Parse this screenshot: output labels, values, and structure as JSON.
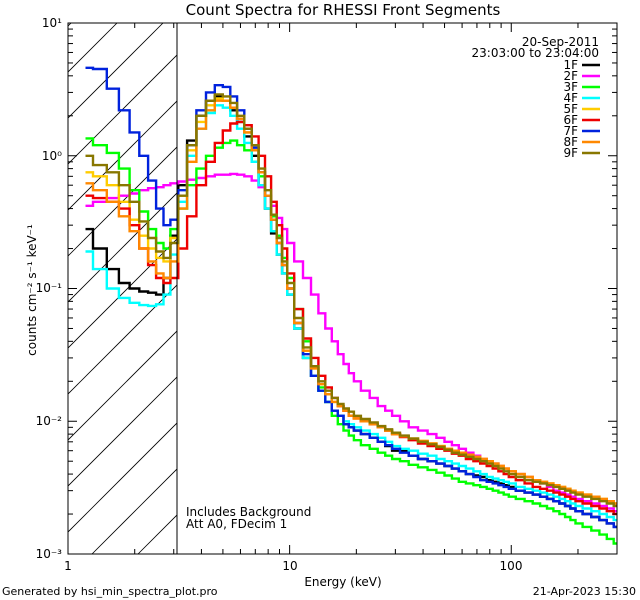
{
  "chart_data": {
    "type": "line",
    "title": "Count Spectra for RHESSI Front Segments",
    "xlabel": "Energy (keV)",
    "ylabel": "counts cm⁻² s⁻¹ keV⁻¹",
    "xscale": "log",
    "yscale": "log",
    "xlim": [
      1,
      300
    ],
    "ylim": [
      0.001,
      10
    ],
    "x_tick_labels": [
      "1",
      "10",
      "100"
    ],
    "y_tick_labels": [
      "10⁻³",
      "10⁻²",
      "10⁻¹",
      "10⁰",
      "10¹"
    ],
    "legend_location": "top-right",
    "header_lines": [
      "20-Sep-2011",
      "23:03:00 to 23:04:00"
    ],
    "annotations": [
      "Includes Background",
      "Att A0, FDecim 1"
    ],
    "footer_left": "Generated by hsi_min_spectra_plot.pro",
    "footer_right": "21-Apr-2023 15:30",
    "shaded_region_keV": [
      1,
      3
    ],
    "energy_keV": [
      1.2,
      1.4,
      1.6,
      1.8,
      2.0,
      2.2,
      2.4,
      2.6,
      2.8,
      3.0,
      3.3,
      3.6,
      4.0,
      4.4,
      4.8,
      5.2,
      5.6,
      6.0,
      6.5,
      7.0,
      7.5,
      8.0,
      8.5,
      9.0,
      9.5,
      10,
      11,
      12,
      13,
      14,
      15,
      16,
      17,
      18,
      19,
      20,
      22,
      24,
      26,
      28,
      30,
      33,
      36,
      40,
      44,
      48,
      52,
      56,
      60,
      65,
      70,
      75,
      80,
      85,
      90,
      95,
      100,
      110,
      120,
      130,
      140,
      150,
      160,
      170,
      180,
      190,
      200,
      220,
      240,
      260,
      280,
      300
    ],
    "series": [
      {
        "name": "1F",
        "color": "#000000",
        "values": [
          0.28,
          0.2,
          0.14,
          0.11,
          0.1,
          0.095,
          0.093,
          0.09,
          0.12,
          0.25,
          0.6,
          1.3,
          2.0,
          2.6,
          2.8,
          2.6,
          2.2,
          1.8,
          1.4,
          1.0,
          0.6,
          0.4,
          0.26,
          0.18,
          0.13,
          0.09,
          0.05,
          0.03,
          0.022,
          0.017,
          0.014,
          0.012,
          0.011,
          0.0095,
          0.009,
          0.0085,
          0.008,
          0.0075,
          0.007,
          0.0065,
          0.006,
          0.006,
          0.0055,
          0.0052,
          0.005,
          0.0048,
          0.0046,
          0.0044,
          0.0042,
          0.004,
          0.0039,
          0.0038,
          0.0036,
          0.0035,
          0.0034,
          0.0033,
          0.0032,
          0.003,
          0.0029,
          0.0028,
          0.0027,
          0.0026,
          0.0025,
          0.0024,
          0.0023,
          0.0022,
          0.0021,
          0.002,
          0.0019,
          0.0018,
          0.0017,
          0.0016
        ]
      },
      {
        "name": "2F",
        "color": "#ff00ff",
        "values": [
          0.42,
          0.45,
          0.48,
          0.5,
          0.52,
          0.55,
          0.57,
          0.58,
          0.6,
          0.62,
          0.64,
          0.66,
          0.68,
          0.7,
          0.72,
          0.72,
          0.73,
          0.72,
          0.7,
          0.65,
          0.58,
          0.5,
          0.42,
          0.34,
          0.28,
          0.22,
          0.16,
          0.12,
          0.09,
          0.065,
          0.05,
          0.04,
          0.032,
          0.027,
          0.023,
          0.02,
          0.017,
          0.015,
          0.013,
          0.012,
          0.011,
          0.01,
          0.009,
          0.0085,
          0.008,
          0.0075,
          0.007,
          0.0066,
          0.0062,
          0.0058,
          0.0055,
          0.0052,
          0.005,
          0.0048,
          0.0046,
          0.0044,
          0.0042,
          0.004,
          0.0038,
          0.0036,
          0.0034,
          0.0032,
          0.003,
          0.0029,
          0.0028,
          0.0027,
          0.0026,
          0.0025,
          0.0024,
          0.0023,
          0.0022,
          0.0021
        ]
      },
      {
        "name": "3F",
        "color": "#00ff00",
        "values": [
          1.35,
          1.2,
          1.05,
          0.8,
          0.55,
          0.38,
          0.28,
          0.22,
          0.2,
          0.28,
          0.4,
          0.6,
          0.8,
          1.0,
          1.15,
          1.25,
          1.3,
          1.2,
          1.1,
          0.9,
          0.7,
          0.5,
          0.35,
          0.25,
          0.17,
          0.12,
          0.07,
          0.04,
          0.026,
          0.018,
          0.014,
          0.011,
          0.0095,
          0.0085,
          0.0078,
          0.0072,
          0.0066,
          0.0062,
          0.0058,
          0.0055,
          0.0052,
          0.005,
          0.0047,
          0.0045,
          0.0043,
          0.0041,
          0.0039,
          0.0037,
          0.0035,
          0.0034,
          0.0033,
          0.0032,
          0.0031,
          0.003,
          0.0029,
          0.0028,
          0.0027,
          0.0026,
          0.0025,
          0.0024,
          0.0023,
          0.0022,
          0.0021,
          0.002,
          0.0019,
          0.0018,
          0.0017,
          0.0016,
          0.0015,
          0.0014,
          0.0013,
          0.0012
        ]
      },
      {
        "name": "4F",
        "color": "#00ffff",
        "values": [
          0.19,
          0.14,
          0.1,
          0.085,
          0.078,
          0.075,
          0.074,
          0.076,
          0.09,
          0.18,
          0.45,
          1.0,
          1.6,
          2.1,
          2.4,
          2.3,
          2.0,
          1.6,
          1.25,
          0.9,
          0.6,
          0.4,
          0.27,
          0.18,
          0.13,
          0.09,
          0.05,
          0.03,
          0.022,
          0.017,
          0.014,
          0.012,
          0.011,
          0.01,
          0.0095,
          0.009,
          0.0085,
          0.008,
          0.0075,
          0.007,
          0.0065,
          0.0062,
          0.006,
          0.0057,
          0.0055,
          0.0052,
          0.005,
          0.0048,
          0.0046,
          0.0044,
          0.0042,
          0.004,
          0.0038,
          0.0037,
          0.0036,
          0.0035,
          0.0034,
          0.0032,
          0.0031,
          0.003,
          0.0029,
          0.0028,
          0.0027,
          0.0026,
          0.0025,
          0.0024,
          0.0023,
          0.0022,
          0.0021,
          0.002,
          0.0019,
          0.0018
        ]
      },
      {
        "name": "5F",
        "color": "#ffcc00",
        "values": [
          0.75,
          0.7,
          0.6,
          0.45,
          0.33,
          0.25,
          0.2,
          0.17,
          0.16,
          0.24,
          0.5,
          1.1,
          1.8,
          2.4,
          2.7,
          2.6,
          2.3,
          1.9,
          1.5,
          1.1,
          0.75,
          0.5,
          0.33,
          0.22,
          0.15,
          0.1,
          0.055,
          0.034,
          0.025,
          0.019,
          0.016,
          0.014,
          0.013,
          0.012,
          0.011,
          0.0105,
          0.01,
          0.0095,
          0.009,
          0.0085,
          0.008,
          0.0077,
          0.0074,
          0.0071,
          0.0068,
          0.0065,
          0.0062,
          0.006,
          0.0058,
          0.0056,
          0.0054,
          0.0052,
          0.005,
          0.0048,
          0.0046,
          0.0044,
          0.0042,
          0.004,
          0.0038,
          0.0036,
          0.0035,
          0.0034,
          0.0033,
          0.0032,
          0.0031,
          0.003,
          0.0029,
          0.0028,
          0.0027,
          0.0026,
          0.0025,
          0.0024
        ]
      },
      {
        "name": "6F",
        "color": "#ee0000",
        "values": [
          0.5,
          0.48,
          0.45,
          0.4,
          0.3,
          0.2,
          0.15,
          0.12,
          0.11,
          0.12,
          0.2,
          0.35,
          0.6,
          0.9,
          1.25,
          1.55,
          1.75,
          1.8,
          1.7,
          1.4,
          1.0,
          0.7,
          0.45,
          0.3,
          0.2,
          0.13,
          0.07,
          0.042,
          0.03,
          0.022,
          0.018,
          0.015,
          0.013,
          0.012,
          0.011,
          0.0105,
          0.01,
          0.0095,
          0.009,
          0.0085,
          0.008,
          0.0076,
          0.0072,
          0.0068,
          0.0065,
          0.0062,
          0.006,
          0.0057,
          0.0055,
          0.0052,
          0.005,
          0.0048,
          0.0046,
          0.0044,
          0.0042,
          0.004,
          0.0038,
          0.0036,
          0.0034,
          0.0032,
          0.0031,
          0.003,
          0.0029,
          0.0028,
          0.0027,
          0.0026,
          0.0025,
          0.0024,
          0.0023,
          0.0022,
          0.0021,
          0.002
        ]
      },
      {
        "name": "7F",
        "color": "#0022dd",
        "values": [
          4.6,
          4.5,
          3.2,
          2.2,
          1.5,
          1.0,
          0.65,
          0.4,
          0.3,
          0.33,
          0.55,
          1.2,
          2.2,
          3.0,
          3.4,
          3.3,
          2.8,
          2.2,
          1.6,
          1.15,
          0.75,
          0.5,
          0.33,
          0.22,
          0.15,
          0.1,
          0.055,
          0.032,
          0.022,
          0.017,
          0.014,
          0.012,
          0.011,
          0.0095,
          0.009,
          0.0085,
          0.008,
          0.0075,
          0.007,
          0.0066,
          0.0062,
          0.0058,
          0.0055,
          0.0052,
          0.005,
          0.0048,
          0.0046,
          0.0044,
          0.0042,
          0.004,
          0.0038,
          0.0036,
          0.0035,
          0.0034,
          0.0033,
          0.0032,
          0.0031,
          0.003,
          0.0029,
          0.0028,
          0.0027,
          0.0026,
          0.0025,
          0.0024,
          0.0023,
          0.0022,
          0.0021,
          0.002,
          0.0019,
          0.0018,
          0.0017,
          0.0016
        ]
      },
      {
        "name": "8F",
        "color": "#ff8800",
        "values": [
          0.62,
          0.55,
          0.45,
          0.35,
          0.27,
          0.2,
          0.16,
          0.13,
          0.12,
          0.16,
          0.4,
          0.9,
          1.6,
          2.2,
          2.6,
          2.6,
          2.3,
          1.9,
          1.5,
          1.1,
          0.75,
          0.5,
          0.33,
          0.22,
          0.15,
          0.1,
          0.055,
          0.034,
          0.025,
          0.019,
          0.016,
          0.014,
          0.013,
          0.012,
          0.011,
          0.0105,
          0.01,
          0.0095,
          0.009,
          0.0085,
          0.008,
          0.0077,
          0.0074,
          0.0071,
          0.0068,
          0.0065,
          0.0062,
          0.006,
          0.0058,
          0.0056,
          0.0054,
          0.0052,
          0.005,
          0.0048,
          0.0046,
          0.0044,
          0.0042,
          0.004,
          0.0038,
          0.0036,
          0.0035,
          0.0034,
          0.0033,
          0.0032,
          0.0031,
          0.003,
          0.0029,
          0.0028,
          0.0027,
          0.0026,
          0.0025,
          0.0024
        ]
      },
      {
        "name": "9F",
        "color": "#887700",
        "values": [
          1.0,
          0.85,
          0.75,
          0.6,
          0.45,
          0.32,
          0.24,
          0.19,
          0.17,
          0.22,
          0.5,
          1.2,
          2.0,
          2.6,
          2.9,
          2.8,
          2.5,
          2.0,
          1.6,
          1.2,
          0.8,
          0.55,
          0.36,
          0.24,
          0.16,
          0.11,
          0.06,
          0.036,
          0.026,
          0.02,
          0.017,
          0.015,
          0.0135,
          0.0125,
          0.0118,
          0.011,
          0.0104,
          0.0098,
          0.0092,
          0.0087,
          0.0082,
          0.0078,
          0.0074,
          0.007,
          0.0067,
          0.0064,
          0.0061,
          0.0058,
          0.0056,
          0.0054,
          0.0052,
          0.005,
          0.0048,
          0.0046,
          0.0044,
          0.0042,
          0.004,
          0.0038,
          0.0036,
          0.0035,
          0.0034,
          0.0033,
          0.0032,
          0.0031,
          0.003,
          0.0029,
          0.0028,
          0.0027,
          0.0026,
          0.0025,
          0.0024,
          0.0023
        ]
      }
    ]
  }
}
